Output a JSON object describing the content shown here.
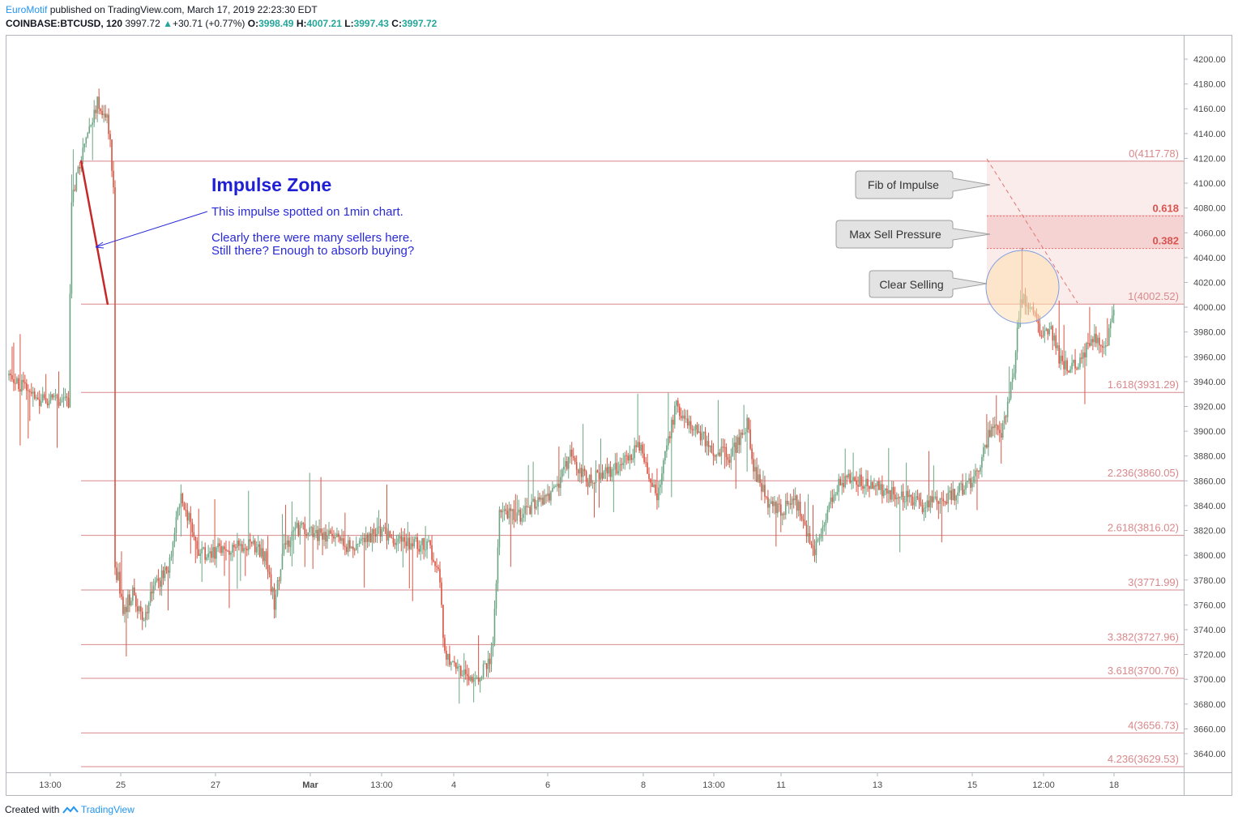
{
  "header": {
    "author": "EuroMotif",
    "published": "published on TradingView.com, March 17, 2019 22:23:30 EDT",
    "symbol": "COINBASE:BTCUSD, 120",
    "last": "3997.72",
    "change": "+30.71 (+0.77%)",
    "o_label": "O:",
    "o": "3998.49",
    "h_label": "H:",
    "h": "4007.21",
    "l_label": "L:",
    "l": "3997.43",
    "c_label": "C:",
    "c": "3997.72"
  },
  "footer": {
    "created": "Created with",
    "brand": "TradingView"
  },
  "annotation": {
    "title": "Impulse Zone",
    "line1": "This impulse spotted on 1min chart.",
    "line2": "Clearly there were many sellers here.",
    "line3": "Still there?  Enough to absorb buying?"
  },
  "callouts": [
    {
      "label": "Fib of Impulse"
    },
    {
      "label": "Max Sell Pressure"
    },
    {
      "label": "Clear Selling"
    }
  ],
  "colors": {
    "up": "#6ba583",
    "down": "#d75442",
    "fib": "#d9888b",
    "accent": "#2196f3"
  },
  "chart_data": {
    "type": "candlestick",
    "y_axis": {
      "min": 3620,
      "max": 4220,
      "ticks": [
        4200,
        4180,
        4160,
        4140,
        4120,
        4100,
        4080,
        4060,
        4040,
        4020,
        4000,
        3980,
        3960,
        3940,
        3920,
        3900,
        3880,
        3860,
        3840,
        3820,
        3800,
        3780,
        3760,
        3740,
        3720,
        3700,
        3680,
        3660,
        3640
      ],
      "tick_labels": [
        "4200.00",
        "4180.00",
        "4160.00",
        "4140.00",
        "4120.00",
        "4100.00",
        "4080.00",
        "4060.00",
        "4040.00",
        "4020.00",
        "4000.00",
        "3980.00",
        "3960.00",
        "3940.00",
        "3920.00",
        "3900.00",
        "3880.00",
        "3860.00",
        "3840.00",
        "3820.00",
        "3800.00",
        "3780.00",
        "3760.00",
        "3740.00",
        "3720.00",
        "3700.00",
        "3680.00",
        "3660.00",
        "3640.00"
      ]
    },
    "x_axis": {
      "tick_labels": [
        "13:00",
        "25",
        "27",
        "Mar",
        "13:00",
        "4",
        "6",
        "8",
        "13:00",
        "11",
        "13",
        "15",
        "12:00",
        "18"
      ]
    },
    "fib_levels": [
      {
        "label": "0(4117.78)",
        "value": 4117.78
      },
      {
        "label": "0.618",
        "value": 4073.5
      },
      {
        "label": "0.382",
        "value": 4047.3
      },
      {
        "label": "1(4002.52)",
        "value": 4002.52
      },
      {
        "label": "1.618(3931.29)",
        "value": 3931.29
      },
      {
        "label": "2.236(3860.05)",
        "value": 3860.05
      },
      {
        "label": "2.618(3816.02)",
        "value": 3816.02
      },
      {
        "label": "3(3771.99)",
        "value": 3771.99
      },
      {
        "label": "3.382(3727.96)",
        "value": 3727.96
      },
      {
        "label": "3.618(3700.76)",
        "value": 3700.76
      },
      {
        "label": "4(3656.73)",
        "value": 3656.73
      },
      {
        "label": "4.236(3629.53)",
        "value": 3629.53
      }
    ],
    "anchors": [
      {
        "time": 0,
        "price": 3945
      },
      {
        "time": 20,
        "price": 3925
      },
      {
        "time": 38,
        "price": 3925
      },
      {
        "time": 40,
        "price": 4090
      },
      {
        "time": 50,
        "price": 4140
      },
      {
        "time": 56,
        "price": 4165
      },
      {
        "time": 62,
        "price": 4155
      },
      {
        "time": 64,
        "price": 4130
      },
      {
        "time": 66,
        "price": 4095
      },
      {
        "time": 68,
        "price": 3790
      },
      {
        "time": 72,
        "price": 3755
      },
      {
        "time": 78,
        "price": 3770
      },
      {
        "time": 85,
        "price": 3745
      },
      {
        "time": 90,
        "price": 3770
      },
      {
        "time": 100,
        "price": 3790
      },
      {
        "time": 108,
        "price": 3850
      },
      {
        "time": 114,
        "price": 3825
      },
      {
        "time": 120,
        "price": 3800
      },
      {
        "time": 135,
        "price": 3805
      },
      {
        "time": 150,
        "price": 3810
      },
      {
        "time": 160,
        "price": 3800
      },
      {
        "time": 166,
        "price": 3762
      },
      {
        "time": 172,
        "price": 3805
      },
      {
        "time": 180,
        "price": 3822
      },
      {
        "time": 200,
        "price": 3815
      },
      {
        "time": 215,
        "price": 3805
      },
      {
        "time": 230,
        "price": 3820
      },
      {
        "time": 245,
        "price": 3810
      },
      {
        "time": 262,
        "price": 3808
      },
      {
        "time": 268,
        "price": 3790
      },
      {
        "time": 272,
        "price": 3720
      },
      {
        "time": 280,
        "price": 3705
      },
      {
        "time": 292,
        "price": 3700
      },
      {
        "time": 298,
        "price": 3710
      },
      {
        "time": 302,
        "price": 3725
      },
      {
        "time": 306,
        "price": 3840
      },
      {
        "time": 316,
        "price": 3830
      },
      {
        "time": 326,
        "price": 3840
      },
      {
        "time": 340,
        "price": 3850
      },
      {
        "time": 350,
        "price": 3880
      },
      {
        "time": 360,
        "price": 3860
      },
      {
        "time": 380,
        "price": 3870
      },
      {
        "time": 394,
        "price": 3890
      },
      {
        "time": 400,
        "price": 3860
      },
      {
        "time": 404,
        "price": 3845
      },
      {
        "time": 410,
        "price": 3890
      },
      {
        "time": 416,
        "price": 3920
      },
      {
        "time": 424,
        "price": 3905
      },
      {
        "time": 432,
        "price": 3895
      },
      {
        "time": 440,
        "price": 3885
      },
      {
        "time": 450,
        "price": 3880
      },
      {
        "time": 460,
        "price": 3905
      },
      {
        "time": 464,
        "price": 3870
      },
      {
        "time": 472,
        "price": 3845
      },
      {
        "time": 480,
        "price": 3835
      },
      {
        "time": 490,
        "price": 3845
      },
      {
        "time": 498,
        "price": 3815
      },
      {
        "time": 502,
        "price": 3805
      },
      {
        "time": 508,
        "price": 3830
      },
      {
        "time": 518,
        "price": 3860
      },
      {
        "time": 530,
        "price": 3860
      },
      {
        "time": 540,
        "price": 3855
      },
      {
        "time": 550,
        "price": 3850
      },
      {
        "time": 562,
        "price": 3845
      },
      {
        "time": 570,
        "price": 3840
      },
      {
        "time": 580,
        "price": 3845
      },
      {
        "time": 590,
        "price": 3850
      },
      {
        "time": 600,
        "price": 3860
      },
      {
        "time": 606,
        "price": 3880
      },
      {
        "time": 612,
        "price": 3905
      },
      {
        "time": 618,
        "price": 3895
      },
      {
        "time": 622,
        "price": 3920
      },
      {
        "time": 626,
        "price": 3950
      },
      {
        "time": 630,
        "price": 4010
      },
      {
        "time": 636,
        "price": 4000
      },
      {
        "time": 642,
        "price": 3980
      },
      {
        "time": 648,
        "price": 3985
      },
      {
        "time": 654,
        "price": 3960
      },
      {
        "time": 660,
        "price": 3950
      },
      {
        "time": 666,
        "price": 3955
      },
      {
        "time": 672,
        "price": 3970
      },
      {
        "time": 678,
        "price": 3975
      },
      {
        "time": 683,
        "price": 3965
      },
      {
        "time": 687,
        "price": 3998
      }
    ]
  }
}
